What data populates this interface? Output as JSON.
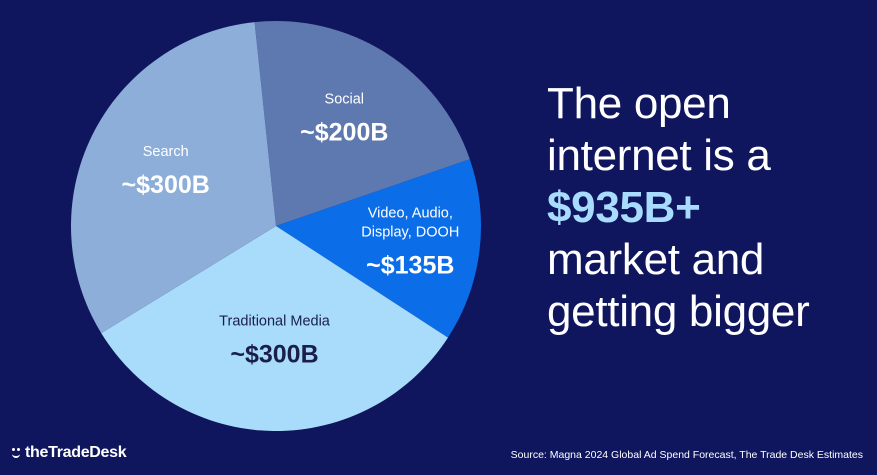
{
  "chart_data": {
    "type": "pie",
    "slices": [
      {
        "name": "Social",
        "value_label": "~$200B",
        "value": 200,
        "color": "#5e78b0"
      },
      {
        "name": "Video, Audio, Display, DOOH",
        "name_lines": [
          "Video, Audio,",
          "Display, DOOH"
        ],
        "value_label": "~$135B",
        "value": 135,
        "color": "#0b6ee8"
      },
      {
        "name": "Traditional Media",
        "value_label": "~$300B",
        "value": 300,
        "color": "#a9dcfb"
      },
      {
        "name": "Search",
        "value_label": "~$300B",
        "value": 300,
        "color": "#8caed9"
      }
    ]
  },
  "headline": {
    "lines": [
      "The open",
      "internet is a",
      "$935B+",
      "market and",
      "getting bigger"
    ]
  },
  "logo": {
    "text": "theTradeDesk"
  },
  "source": "Source: Magna 2024 Global Ad Spend Forecast, The Trade Desk Estimates",
  "colors": {
    "background": "#10165e",
    "accent": "#a8dcff"
  }
}
